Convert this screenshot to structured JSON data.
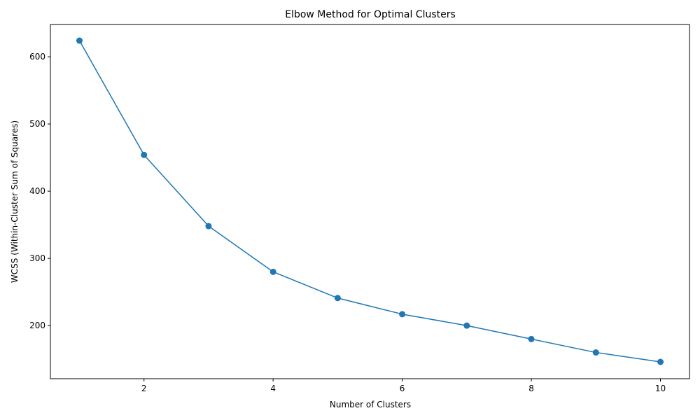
{
  "chart_data": {
    "type": "line",
    "title": "Elbow Method for Optimal Clusters",
    "xlabel": "Number of Clusters",
    "ylabel": "WCSS (Within-Cluster Sum of Squares)",
    "xlim": [
      0.55,
      10.45
    ],
    "ylim": [
      121,
      648
    ],
    "xticks": [
      2,
      4,
      6,
      8,
      10
    ],
    "yticks": [
      200,
      300,
      400,
      500,
      600
    ],
    "grid": false,
    "series": [
      {
        "color": "#1f77b4",
        "marker": "circle",
        "x": [
          1,
          2,
          3,
          4,
          5,
          6,
          7,
          8,
          9,
          10
        ],
        "y": [
          624,
          454,
          348,
          280,
          241,
          217,
          200,
          180,
          160,
          146
        ]
      }
    ]
  }
}
